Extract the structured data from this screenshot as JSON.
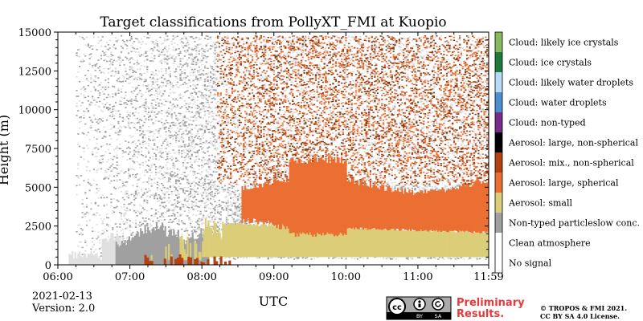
{
  "chart_data": {
    "type": "heatmap",
    "title": "Target classifications from PollyXT_FMI at Kuopio",
    "xlabel": "UTC",
    "ylabel": "Height (m)",
    "x_ticks": [
      "06:00",
      "07:00",
      "08:00",
      "09:00",
      "10:00",
      "11:00",
      "11:59"
    ],
    "x_tick_hours": [
      0,
      1,
      2,
      3,
      4,
      5,
      5.983
    ],
    "y_ticks": [
      "0",
      "2500",
      "5000",
      "7500",
      "10000",
      "12500",
      "15000"
    ],
    "ylim": [
      0,
      15000
    ],
    "x_range_utc": [
      "06:00",
      "11:59"
    ],
    "classes": [
      {
        "name": "No signal",
        "color": "#ffffff"
      },
      {
        "name": "Clean atmosphere",
        "color": "#ffffff"
      },
      {
        "name": "Non-typed particleslow conc.",
        "color": "#a0a0a0"
      },
      {
        "name": "Aerosol: small",
        "color": "#dccd78"
      },
      {
        "name": "Aerosol: large, spherical",
        "color": "#eb6e32"
      },
      {
        "name": "Aerosol: mix., non-spherical",
        "color": "#b4410f"
      },
      {
        "name": "Aerosol: large, non-spherical",
        "color": "#000000"
      },
      {
        "name": "Cloud: non-typed",
        "color": "#7a2a8a"
      },
      {
        "name": "Cloud: water droplets",
        "color": "#4a8fd0"
      },
      {
        "name": "Cloud: likely water droplets",
        "color": "#b8dbf5"
      },
      {
        "name": "Cloud: ice crystals",
        "color": "#1e7a3a"
      },
      {
        "name": "Cloud: likely ice crystals",
        "color": "#88b860"
      }
    ],
    "regions": [
      {
        "class": "Non-typed particleslow conc.",
        "start_h": 0.6,
        "end_h": 2.0,
        "bottom_m": 0,
        "top_m": 2800
      },
      {
        "class": "Aerosol: small",
        "start_h": 2.0,
        "end_h": 6.0,
        "bottom_m": 0,
        "top_m": 2600
      },
      {
        "class": "Aerosol: large, spherical",
        "start_h": 2.6,
        "end_h": 6.0,
        "bottom_m": 2000,
        "top_m": 5500
      },
      {
        "class": "Aerosol: mix., non-spherical",
        "start_h": 1.0,
        "end_h": 2.4,
        "bottom_m": 0,
        "top_m": 500
      }
    ]
  },
  "footer": {
    "date": "2021-02-13",
    "version": "Version: 2.0",
    "preliminary": [
      "Preliminary",
      "Results."
    ],
    "copyright": [
      "© TROPOS & FMI 2021.",
      "CC BY SA 4.0 License."
    ],
    "cc_badge": [
      "BY",
      "SA"
    ]
  }
}
